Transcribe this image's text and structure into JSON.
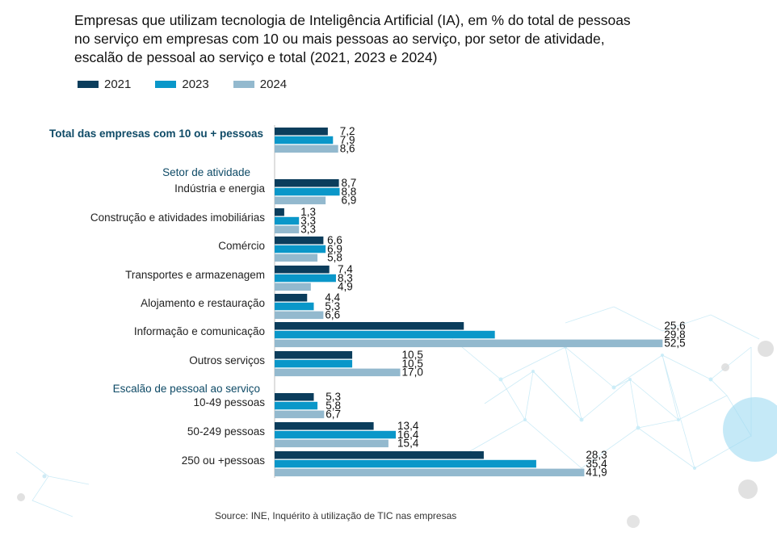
{
  "chart_data": {
    "type": "bar",
    "orientation": "horizontal",
    "title": "Empresas que utilizam tecnologia de Inteligência Artificial (IA), em % do total de pessoas\nno serviço em empresas com 10 ou mais pessoas ao serviço, por setor de atividade,\nescalão de pessoal ao serviço e total (2021, 2023 e 2024)",
    "legend": [
      "2021",
      "2023",
      "2024"
    ],
    "colors": {
      "2021": "#0b3d5c",
      "2023": "#0a97c9",
      "2024": "#93b9ce"
    },
    "xlim": [
      0,
      60
    ],
    "section_headers": {
      "setor": "Setor de atividade",
      "escalao": "Escalão de pessoal ao serviço"
    },
    "categories": [
      {
        "label": "Total das empresas  com 10 ou + pessoas",
        "group": "total",
        "values": [
          7.2,
          7.9,
          8.6
        ],
        "labels": [
          "7,2",
          "7,9",
          "8,6"
        ]
      },
      {
        "label": "Indústria e energia",
        "group": "setor",
        "values": [
          8.7,
          8.8,
          6.9
        ],
        "labels": [
          "8,7",
          "8,8",
          "6,9"
        ]
      },
      {
        "label": "Construção e atividades imobiliárias",
        "group": "setor",
        "values": [
          1.3,
          3.3,
          3.3
        ],
        "labels": [
          "1,3",
          "3,3",
          "3,3"
        ]
      },
      {
        "label": "Comércio",
        "group": "setor",
        "values": [
          6.6,
          6.9,
          5.8
        ],
        "labels": [
          "6,6",
          "6,9",
          "5,8"
        ]
      },
      {
        "label": "Transportes e armazenagem",
        "group": "setor",
        "values": [
          7.4,
          8.3,
          4.9
        ],
        "labels": [
          "7,4",
          "8,3",
          "4,9"
        ]
      },
      {
        "label": "Alojamento e restauração",
        "group": "setor",
        "values": [
          4.4,
          5.3,
          6.6
        ],
        "labels": [
          "4,4",
          "5,3",
          "6,6"
        ]
      },
      {
        "label": "Informação e comunicação",
        "group": "setor",
        "values": [
          25.6,
          29.8,
          52.5
        ],
        "labels": [
          "25,6",
          "29,8",
          "52,5"
        ]
      },
      {
        "label": "Outros serviços",
        "group": "setor",
        "values": [
          10.5,
          10.5,
          17.0
        ],
        "labels": [
          "10,5",
          "10,5",
          "17,0"
        ]
      },
      {
        "label": "10-49 pessoas",
        "group": "escalao",
        "values": [
          5.3,
          5.8,
          6.7
        ],
        "labels": [
          "5,3",
          "5,8",
          "6,7"
        ]
      },
      {
        "label": "50-249 pessoas",
        "group": "escalao",
        "values": [
          13.4,
          16.4,
          15.4
        ],
        "labels": [
          "13,4",
          "16,4",
          "15,4"
        ]
      },
      {
        "label": "250 ou +pessoas",
        "group": "escalao",
        "values": [
          28.3,
          35.4,
          41.9
        ],
        "labels": [
          "28,3",
          "35,4",
          "41,9"
        ]
      }
    ],
    "source": "Source: INE, Inquérito à utilização de TIC nas empresas"
  }
}
